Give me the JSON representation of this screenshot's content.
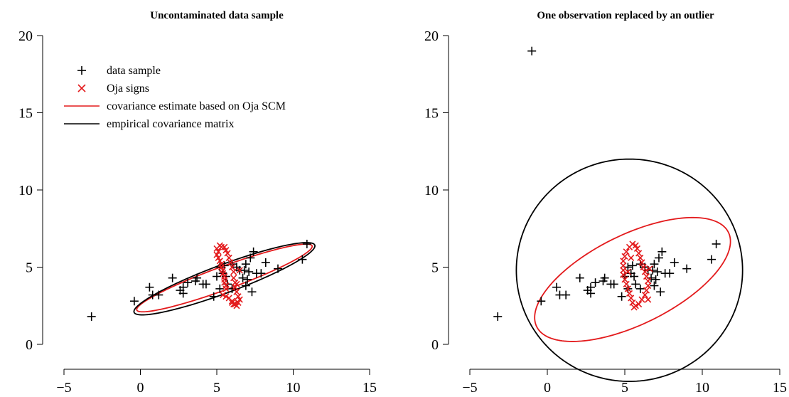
{
  "chart_data": [
    {
      "type": "scatter",
      "title": "Uncontaminated data sample",
      "xlim": [
        -5,
        15
      ],
      "ylim": [
        0,
        20
      ],
      "x_ticks": [
        -5,
        0,
        5,
        10,
        15
      ],
      "y_ticks": [
        0,
        5,
        10,
        15,
        20
      ],
      "grid": false,
      "legend_position": "top-left",
      "legend": [
        {
          "label": "data sample",
          "marker": "plus",
          "color": "#000000"
        },
        {
          "label": "Oja signs",
          "marker": "cross",
          "color": "#e31a1c"
        },
        {
          "label": "covariance estimate based on Oja SCM",
          "marker": "line",
          "color": "#e31a1c"
        },
        {
          "label": "empirical covariance matrix",
          "marker": "line",
          "color": "#000000"
        }
      ],
      "series": [
        {
          "name": "data sample",
          "marker": "plus",
          "color": "#000000",
          "points": [
            [
              -3.2,
              1.8
            ],
            [
              -0.4,
              2.8
            ],
            [
              0.6,
              3.7
            ],
            [
              0.8,
              3.2
            ],
            [
              1.2,
              3.2
            ],
            [
              2.1,
              4.3
            ],
            [
              2.6,
              3.5
            ],
            [
              2.8,
              3.3
            ],
            [
              2.8,
              3.7
            ],
            [
              3.1,
              4.0
            ],
            [
              3.6,
              4.1
            ],
            [
              3.7,
              4.3
            ],
            [
              4.1,
              3.9
            ],
            [
              4.3,
              3.9
            ],
            [
              4.8,
              3.1
            ],
            [
              5.0,
              4.4
            ],
            [
              5.2,
              5.0
            ],
            [
              5.2,
              3.6
            ],
            [
              5.4,
              4.6
            ],
            [
              5.5,
              5.1
            ],
            [
              5.6,
              4.4
            ],
            [
              5.7,
              3.9
            ],
            [
              6.0,
              5.2
            ],
            [
              6.0,
              3.6
            ],
            [
              6.3,
              5.0
            ],
            [
              6.5,
              4.8
            ],
            [
              6.7,
              4.3
            ],
            [
              6.8,
              4.8
            ],
            [
              6.9,
              5.2
            ],
            [
              6.9,
              3.8
            ],
            [
              7.0,
              4.2
            ],
            [
              7.1,
              4.7
            ],
            [
              7.2,
              5.6
            ],
            [
              7.3,
              3.4
            ],
            [
              7.4,
              6.0
            ],
            [
              7.6,
              4.6
            ],
            [
              7.9,
              4.6
            ],
            [
              8.2,
              5.3
            ],
            [
              9.0,
              4.9
            ],
            [
              10.6,
              5.5
            ],
            [
              10.9,
              6.5
            ]
          ]
        },
        {
          "name": "Oja signs",
          "marker": "cross",
          "color": "#e31a1c",
          "points": [
            [
              5.0,
              6.2
            ],
            [
              5.1,
              6.0
            ],
            [
              5.0,
              5.8
            ],
            [
              5.1,
              5.6
            ],
            [
              5.2,
              5.4
            ],
            [
              5.3,
              5.2
            ],
            [
              5.3,
              5.0
            ],
            [
              5.4,
              4.8
            ],
            [
              5.4,
              4.6
            ],
            [
              5.5,
              4.4
            ],
            [
              5.5,
              4.2
            ],
            [
              5.5,
              4.0
            ],
            [
              5.6,
              3.8
            ],
            [
              5.6,
              3.6
            ],
            [
              5.4,
              3.2
            ],
            [
              5.6,
              3.1
            ],
            [
              5.8,
              3.0
            ],
            [
              6.0,
              2.8
            ],
            [
              6.1,
              2.6
            ],
            [
              6.3,
              2.5
            ],
            [
              6.4,
              2.7
            ],
            [
              6.5,
              2.9
            ],
            [
              6.4,
              3.1
            ],
            [
              6.3,
              3.4
            ],
            [
              6.2,
              3.7
            ],
            [
              6.2,
              4.0
            ],
            [
              6.1,
              4.3
            ],
            [
              6.1,
              4.7
            ],
            [
              6.0,
              5.0
            ],
            [
              5.9,
              5.3
            ],
            [
              5.8,
              5.6
            ],
            [
              5.7,
              5.9
            ],
            [
              5.6,
              6.1
            ],
            [
              5.5,
              6.3
            ],
            [
              5.3,
              6.3
            ],
            [
              5.2,
              6.4
            ],
            [
              6.5,
              4.8
            ],
            [
              6.3,
              3.9
            ],
            [
              6.0,
              2.7
            ],
            [
              6.2,
              2.6
            ]
          ]
        }
      ],
      "ellipses": [
        {
          "name": "covariance estimate based on Oja SCM",
          "color": "#e31a1c",
          "center": [
            5.5,
            4.3
          ],
          "semi_axes": [
            6.1,
            0.75
          ],
          "angle_deg": 19.9
        },
        {
          "name": "empirical covariance matrix",
          "color": "#000000",
          "center": [
            5.5,
            4.25
          ],
          "semi_axes": [
            6.3,
            0.92
          ],
          "angle_deg": 20.2
        }
      ]
    },
    {
      "type": "scatter",
      "title": "One observation replaced by an outlier",
      "xlim": [
        -5,
        15
      ],
      "ylim": [
        0,
        20
      ],
      "x_ticks": [
        -5,
        0,
        5,
        10,
        15
      ],
      "y_ticks": [
        0,
        5,
        10,
        15,
        20
      ],
      "grid": false,
      "series": [
        {
          "name": "data sample",
          "marker": "plus",
          "color": "#000000",
          "points": [
            [
              -1.0,
              19.0
            ],
            [
              -3.2,
              1.8
            ],
            [
              -0.4,
              2.8
            ],
            [
              0.6,
              3.7
            ],
            [
              0.8,
              3.2
            ],
            [
              1.2,
              3.2
            ],
            [
              2.1,
              4.3
            ],
            [
              2.6,
              3.5
            ],
            [
              2.8,
              3.3
            ],
            [
              2.8,
              3.7
            ],
            [
              3.1,
              4.0
            ],
            [
              3.6,
              4.1
            ],
            [
              3.7,
              4.3
            ],
            [
              4.1,
              3.9
            ],
            [
              4.3,
              3.9
            ],
            [
              4.8,
              3.1
            ],
            [
              5.0,
              4.4
            ],
            [
              5.2,
              5.0
            ],
            [
              5.2,
              3.6
            ],
            [
              5.4,
              4.6
            ],
            [
              5.5,
              5.1
            ],
            [
              5.6,
              4.4
            ],
            [
              5.7,
              3.9
            ],
            [
              6.0,
              5.2
            ],
            [
              6.0,
              3.6
            ],
            [
              6.3,
              5.0
            ],
            [
              6.5,
              4.8
            ],
            [
              6.7,
              4.3
            ],
            [
              6.8,
              4.8
            ],
            [
              6.9,
              5.2
            ],
            [
              6.9,
              3.8
            ],
            [
              7.0,
              4.2
            ],
            [
              7.1,
              4.7
            ],
            [
              7.2,
              5.6
            ],
            [
              7.3,
              3.4
            ],
            [
              7.4,
              6.0
            ],
            [
              7.6,
              4.6
            ],
            [
              7.9,
              4.6
            ],
            [
              8.2,
              5.3
            ],
            [
              9.0,
              4.9
            ],
            [
              10.6,
              5.5
            ],
            [
              10.9,
              6.5
            ]
          ]
        },
        {
          "name": "Oja signs",
          "marker": "cross",
          "color": "#e31a1c",
          "points": [
            [
              5.5,
              6.5
            ],
            [
              5.3,
              6.3
            ],
            [
              5.1,
              6.0
            ],
            [
              5.0,
              5.7
            ],
            [
              4.9,
              5.4
            ],
            [
              4.9,
              5.1
            ],
            [
              4.9,
              4.8
            ],
            [
              4.9,
              4.5
            ],
            [
              5.0,
              4.2
            ],
            [
              5.1,
              3.9
            ],
            [
              5.2,
              3.6
            ],
            [
              5.3,
              3.3
            ],
            [
              5.4,
              3.0
            ],
            [
              5.5,
              2.7
            ],
            [
              5.7,
              2.5
            ],
            [
              5.9,
              2.6
            ],
            [
              6.1,
              2.9
            ],
            [
              6.3,
              3.2
            ],
            [
              6.4,
              3.5
            ],
            [
              6.5,
              3.8
            ],
            [
              6.5,
              4.1
            ],
            [
              6.4,
              4.4
            ],
            [
              6.3,
              4.7
            ],
            [
              6.2,
              5.0
            ],
            [
              6.1,
              5.3
            ],
            [
              6.0,
              5.6
            ],
            [
              5.9,
              5.9
            ],
            [
              5.8,
              6.2
            ],
            [
              5.7,
              6.4
            ],
            [
              6.6,
              4.9
            ],
            [
              6.5,
              2.9
            ],
            [
              5.6,
              2.4
            ],
            [
              5.4,
              5.6
            ],
            [
              5.2,
              4.7
            ]
          ]
        }
      ],
      "ellipses": [
        {
          "name": "covariance estimate based on Oja SCM",
          "color": "#e31a1c",
          "center": [
            5.5,
            4.2
          ],
          "semi_axes": [
            6.9,
            2.9
          ],
          "angle_deg": 26.3
        },
        {
          "name": "empirical covariance matrix",
          "color": "#000000",
          "center": [
            5.3,
            4.8
          ],
          "semi_axes": [
            7.3,
            7.2
          ],
          "angle_deg": 0
        }
      ]
    }
  ]
}
